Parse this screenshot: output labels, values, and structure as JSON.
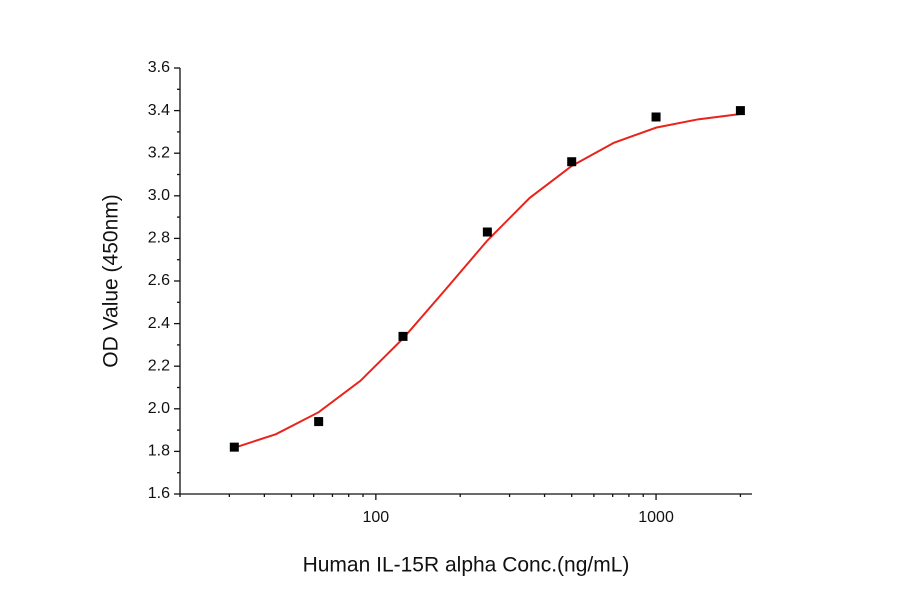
{
  "chart_data": {
    "type": "scatter",
    "x_label": "Human IL-15R alpha Conc.(ng/mL)",
    "y_label": "OD Value (450nm)",
    "xscale": "log",
    "xlim": [
      20,
      2200
    ],
    "ylim": [
      1.6,
      3.6
    ],
    "xticks": [
      100,
      1000
    ],
    "yticks": [
      1.6,
      1.8,
      {
        "value": 2.0,
        "label": "2.0"
      },
      2.2,
      2.4,
      2.6,
      2.8,
      {
        "value": 3.0,
        "label": "3.0"
      },
      3.2,
      3.4,
      3.6
    ],
    "series": [
      {
        "kind": "points",
        "color": "#000000",
        "x": [
          31.25,
          62.5,
          125,
          250,
          500,
          1000,
          2000
        ],
        "values": [
          1.82,
          1.94,
          2.34,
          2.83,
          3.16,
          3.37,
          3.4
        ]
      },
      {
        "kind": "fit",
        "color": "#e8231c",
        "x": [
          31.25,
          44,
          62.5,
          88,
          125,
          177,
          250,
          354,
          500,
          707,
          1000,
          1414,
          2000
        ],
        "values": [
          1.817,
          1.881,
          1.984,
          2.131,
          2.33,
          2.559,
          2.79,
          2.99,
          3.14,
          3.249,
          3.32,
          3.359,
          3.384
        ]
      }
    ]
  }
}
